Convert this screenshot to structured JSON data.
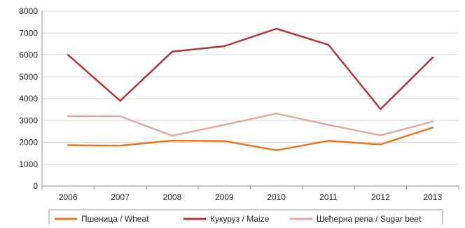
{
  "chart_data": {
    "type": "line",
    "categories": [
      "2006",
      "2007",
      "2008",
      "2009",
      "2010",
      "2011",
      "2012",
      "2013"
    ],
    "ylim": [
      0,
      8000
    ],
    "yticks": [
      0,
      1000,
      2000,
      3000,
      4000,
      5000,
      6000,
      7000,
      8000
    ],
    "grid": true,
    "legend_position": "bottom",
    "series": [
      {
        "name": "Пшеница / Wheat",
        "color": "#E87722",
        "values": [
          1870,
          1850,
          2080,
          2060,
          1640,
          2070,
          1900,
          2680
        ]
      },
      {
        "name": "Кукуруз / Maize",
        "color": "#B5353B",
        "values": [
          6000,
          3900,
          6150,
          6400,
          7200,
          6460,
          3520,
          5880
        ]
      },
      {
        "name": "Шећерна репа / Sugar beet",
        "color": "#E3A9A8",
        "values": [
          3200,
          3190,
          2300,
          2800,
          3320,
          2800,
          2320,
          2950
        ]
      }
    ]
  }
}
